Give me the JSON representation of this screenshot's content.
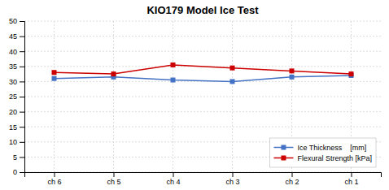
{
  "chart_data": {
    "type": "line",
    "title": "KIO179 Model Ice Test",
    "categories": [
      "ch 6",
      "ch 5",
      "ch 4",
      "ch 3",
      "ch 2",
      "ch 1"
    ],
    "series": [
      {
        "name": "Ice Thickness    [mm]",
        "color": "#4472C4",
        "marker": "square",
        "values": [
          31.0,
          31.5,
          30.5,
          30.0,
          31.5,
          32.0
        ]
      },
      {
        "name": "Flexural Strength [kPa]",
        "color": "#CC0000",
        "marker": "square",
        "values": [
          33.0,
          32.5,
          35.5,
          34.5,
          33.5,
          32.5
        ]
      }
    ],
    "ylim": [
      0,
      50
    ],
    "yticks": [
      0,
      5,
      10,
      15,
      20,
      25,
      30,
      35,
      40,
      45,
      50
    ],
    "grid": true,
    "legend": "lower right"
  }
}
